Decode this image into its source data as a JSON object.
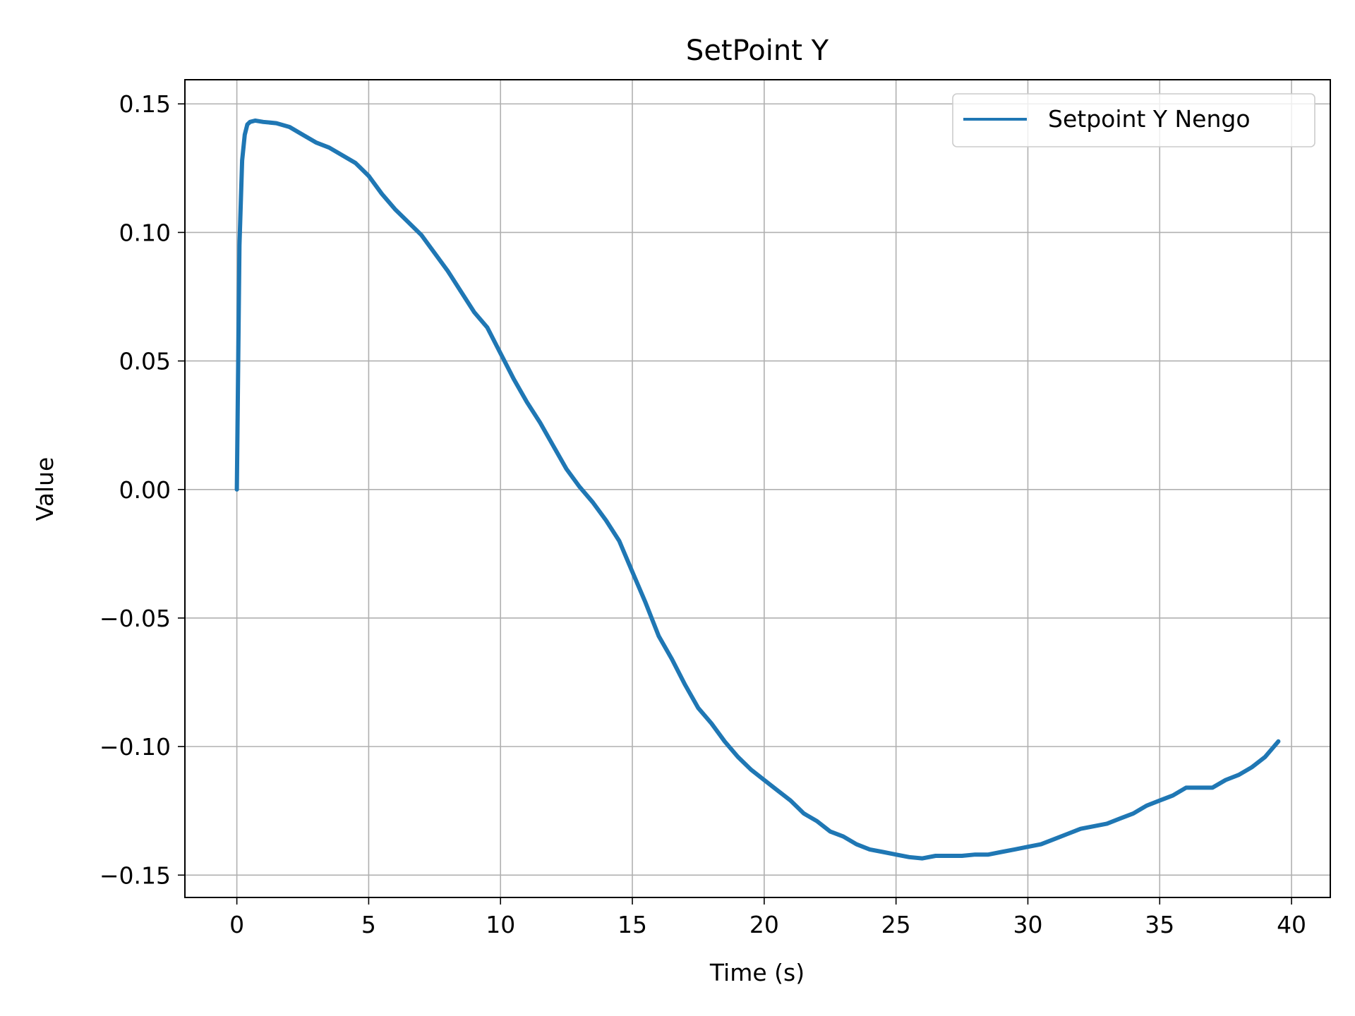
{
  "chart_data": {
    "type": "line",
    "title": "SetPoint Y",
    "xlabel": "Time (s)",
    "ylabel": "Value",
    "xlim": [
      -1.97,
      41.47
    ],
    "ylim": [
      -0.1587,
      0.1594
    ],
    "xticks": [
      0,
      5,
      10,
      15,
      20,
      25,
      30,
      35,
      40
    ],
    "xtick_labels": [
      "0",
      "5",
      "10",
      "15",
      "20",
      "25",
      "30",
      "35",
      "40"
    ],
    "yticks": [
      0.15,
      0.1,
      0.05,
      0.0,
      -0.05,
      -0.1,
      -0.15
    ],
    "ytick_labels": [
      "0.15",
      "0.10",
      "0.05",
      "0.00",
      "−0.05",
      "−0.10",
      "−0.15"
    ],
    "grid": true,
    "legend": {
      "position": "top-right",
      "entries": [
        "Setpoint Y Nengo"
      ]
    },
    "series": [
      {
        "name": "Setpoint Y Nengo",
        "color": "#1f77b4",
        "x": [
          0,
          0.1,
          0.2,
          0.3,
          0.4,
          0.5,
          0.7,
          1.0,
          1.5,
          2.0,
          2.5,
          3.0,
          3.5,
          4.0,
          4.5,
          5.0,
          5.5,
          6.0,
          6.5,
          7.0,
          7.5,
          8.0,
          8.5,
          9.0,
          9.5,
          10.0,
          10.5,
          11.0,
          11.5,
          12.0,
          12.5,
          13.0,
          13.5,
          14.0,
          14.5,
          15.0,
          15.5,
          16.0,
          16.5,
          17.0,
          17.5,
          18.0,
          18.5,
          19.0,
          19.5,
          20.0,
          20.5,
          21.0,
          21.5,
          22.0,
          22.5,
          23.0,
          23.5,
          24.0,
          24.5,
          25.0,
          25.5,
          26.0,
          26.5,
          27.0,
          27.5,
          28.0,
          28.5,
          29.0,
          29.5,
          30.0,
          30.5,
          31.0,
          31.5,
          32.0,
          32.5,
          33.0,
          33.5,
          34.0,
          34.5,
          35.0,
          35.5,
          36.0,
          36.5,
          37.0,
          37.5,
          38.0,
          38.5,
          39.0,
          39.5
        ],
        "y": [
          0.0,
          0.095,
          0.128,
          0.138,
          0.142,
          0.143,
          0.1435,
          0.143,
          0.1425,
          0.141,
          0.138,
          0.135,
          0.133,
          0.13,
          0.127,
          0.122,
          0.115,
          0.109,
          0.104,
          0.099,
          0.092,
          0.085,
          0.077,
          0.069,
          0.063,
          0.053,
          0.043,
          0.034,
          0.026,
          0.017,
          0.008,
          0.001,
          -0.005,
          -0.012,
          -0.02,
          -0.032,
          -0.044,
          -0.057,
          -0.066,
          -0.076,
          -0.085,
          -0.091,
          -0.098,
          -0.104,
          -0.109,
          -0.113,
          -0.117,
          -0.121,
          -0.126,
          -0.129,
          -0.133,
          -0.135,
          -0.138,
          -0.14,
          -0.141,
          -0.142,
          -0.143,
          -0.1435,
          -0.1425,
          -0.1425,
          -0.1425,
          -0.142,
          -0.142,
          -0.141,
          -0.14,
          -0.139,
          -0.138,
          -0.136,
          -0.134,
          -0.132,
          -0.131,
          -0.13,
          -0.128,
          -0.126,
          -0.123,
          -0.121,
          -0.119,
          -0.116,
          -0.116,
          -0.116,
          -0.113,
          -0.111,
          -0.108,
          -0.104,
          -0.098
        ]
      }
    ]
  }
}
